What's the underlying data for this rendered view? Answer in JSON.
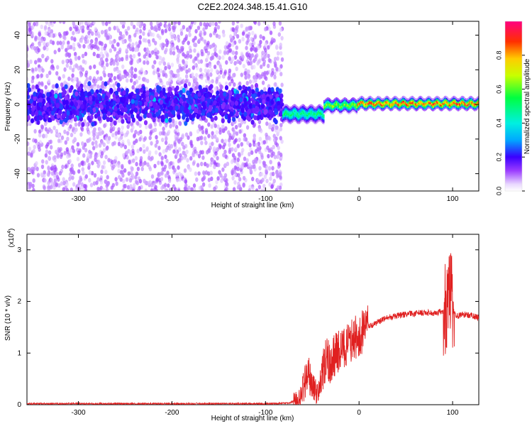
{
  "title": "C2E2.2024.348.15.41.G10",
  "colors": {
    "snr_line": "#e02020",
    "spectrogram_bg": "#ffffff"
  },
  "chart_data": [
    {
      "type": "heatmap",
      "xlabel": "Height of straight line (km)",
      "ylabel": "Frequency (Hz)",
      "xlim": [
        -355,
        128
      ],
      "ylim": [
        -50,
        48
      ],
      "x_ticks": [
        -300,
        -200,
        -100,
        0,
        100
      ],
      "y_ticks": [
        -40,
        -20,
        0,
        20,
        40
      ],
      "noise_region": {
        "x_range": [
          -355,
          -82
        ],
        "strong_band_hz": [
          -8,
          8
        ]
      },
      "signal_segments": [
        {
          "x_range": [
            -82,
            -38
          ],
          "center_hz": -5,
          "halfwidth_hz": 4,
          "peak_amplitude": 0.55
        },
        {
          "x_range": [
            -38,
            -2
          ],
          "center_hz": 0,
          "halfwidth_hz": 3,
          "peak_amplitude": 0.7
        },
        {
          "x_range": [
            -2,
            128
          ],
          "center_hz": 1,
          "halfwidth_hz": 2.5,
          "peak_amplitude": 0.95
        }
      ],
      "colorbar": {
        "label": "Normalized spectral amplitude",
        "range": [
          0,
          1
        ],
        "ticks": [
          "0.0",
          "0.2",
          "0.4",
          "0.6",
          "0.8"
        ]
      }
    },
    {
      "type": "line",
      "xlabel": "Height of straight line (km)",
      "ylabel": "SNR (10 * v/v)",
      "ylabel_multiplier": "(x10",
      "ylabel_exponent": "4",
      "ylabel_multiplier_close": ")",
      "xlim": [
        -355,
        128
      ],
      "ylim": [
        0,
        3.3
      ],
      "x_ticks": [
        -300,
        -200,
        -100,
        0,
        100
      ],
      "y_ticks": [
        0,
        1,
        2,
        3
      ],
      "series": [
        {
          "x": [
            -355,
            -300,
            -250,
            -200,
            -150,
            -100,
            -75,
            -65,
            -60,
            -55,
            -50,
            -45,
            -40,
            -35,
            -30,
            -25,
            -20,
            -15,
            -10,
            -5,
            0,
            5,
            10,
            15,
            20,
            30,
            40,
            50,
            60,
            70,
            80,
            90,
            95,
            97,
            100,
            105,
            110,
            120,
            128
          ],
          "y": [
            0.02,
            0.02,
            0.02,
            0.02,
            0.02,
            0.02,
            0.03,
            0.1,
            0.3,
            0.6,
            0.4,
            0.2,
            0.5,
            0.9,
            0.8,
            1.0,
            1.05,
            1.1,
            1.2,
            1.3,
            1.3,
            1.45,
            1.5,
            1.55,
            1.6,
            1.68,
            1.72,
            1.75,
            1.77,
            1.78,
            1.78,
            1.8,
            1.9,
            2.4,
            1.8,
            1.72,
            1.75,
            1.73,
            1.68
          ]
        }
      ]
    }
  ]
}
